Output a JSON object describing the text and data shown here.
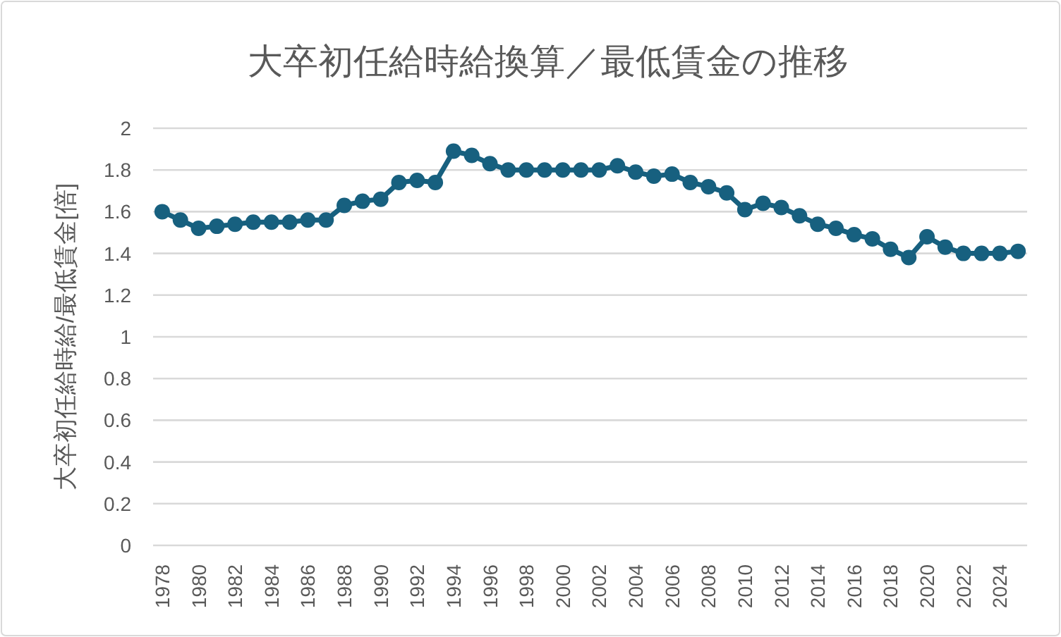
{
  "chart_data": {
    "type": "line",
    "title": "大卒初任給時給換算／最低賃金の推移",
    "ylabel": "大卒初任給時給/最低賃金[倍]",
    "categories": [
      "1978",
      null,
      "1980",
      null,
      "1982",
      null,
      "1984",
      null,
      "1986",
      null,
      "1988",
      null,
      "1990",
      null,
      "1992",
      null,
      "1994",
      null,
      "1996",
      null,
      "1998",
      null,
      "2000",
      null,
      "2002",
      null,
      "2004",
      null,
      "2006",
      null,
      "2008",
      null,
      "2010",
      null,
      "2012",
      null,
      "2014",
      null,
      "2016",
      null,
      "2018",
      null,
      "2020",
      null,
      "2022",
      null,
      "2024",
      null
    ],
    "series": [
      {
        "color": "#17607f",
        "values": [
          1.6,
          1.56,
          1.52,
          1.53,
          1.54,
          1.55,
          1.55,
          1.55,
          1.56,
          1.56,
          1.63,
          1.65,
          1.66,
          1.74,
          1.75,
          1.74,
          1.89,
          1.87,
          1.83,
          1.8,
          1.8,
          1.8,
          1.8,
          1.8,
          1.8,
          1.82,
          1.79,
          1.77,
          1.78,
          1.74,
          1.72,
          1.69,
          1.61,
          1.64,
          1.62,
          1.58,
          1.54,
          1.52,
          1.49,
          1.47,
          1.42,
          1.38,
          1.48,
          1.43,
          1.4,
          1.4,
          1.4,
          1.41
        ]
      }
    ],
    "ylim": [
      0,
      2
    ],
    "yticks": [
      0,
      0.2,
      0.4,
      0.6,
      0.8,
      1,
      1.2,
      1.4,
      1.6,
      1.8,
      2
    ],
    "grid": "y",
    "marker": "circle",
    "line_style": "solid"
  }
}
